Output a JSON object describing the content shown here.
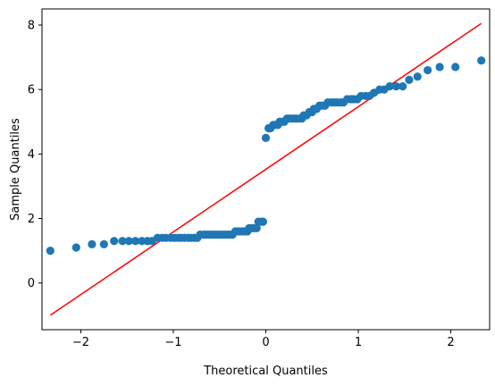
{
  "chart_data": {
    "type": "scatter",
    "title": "",
    "xlabel": "Theoretical Quantiles",
    "ylabel": "Sample Quantiles",
    "xlim": [
      -2.42,
      2.42
    ],
    "ylim": [
      -1.45,
      8.5
    ],
    "xticks": [
      -2,
      -1,
      0,
      1,
      2
    ],
    "yticks": [
      0,
      2,
      4,
      6,
      8
    ],
    "grid": false,
    "point_color": "#1f77b4",
    "line_color": "#ff0000",
    "series": [
      {
        "points": [
          [
            -2.33,
            1.0
          ],
          [
            -2.05,
            1.1
          ],
          [
            -1.88,
            1.2
          ],
          [
            -1.75,
            1.2
          ],
          [
            -1.64,
            1.3
          ],
          [
            -1.55,
            1.3
          ],
          [
            -1.48,
            1.3
          ],
          [
            -1.41,
            1.3
          ],
          [
            -1.34,
            1.3
          ],
          [
            -1.28,
            1.3
          ],
          [
            -1.23,
            1.3
          ],
          [
            -1.17,
            1.4
          ],
          [
            -1.12,
            1.4
          ],
          [
            -1.08,
            1.4
          ],
          [
            -1.03,
            1.4
          ],
          [
            -0.99,
            1.4
          ],
          [
            -0.95,
            1.4
          ],
          [
            -0.92,
            1.4
          ],
          [
            -0.88,
            1.4
          ],
          [
            -0.84,
            1.4
          ],
          [
            -0.81,
            1.4
          ],
          [
            -0.77,
            1.4
          ],
          [
            -0.74,
            1.4
          ],
          [
            -0.71,
            1.5
          ],
          [
            -0.67,
            1.5
          ],
          [
            -0.64,
            1.5
          ],
          [
            -0.61,
            1.5
          ],
          [
            -0.58,
            1.5
          ],
          [
            -0.55,
            1.5
          ],
          [
            -0.52,
            1.5
          ],
          [
            -0.5,
            1.5
          ],
          [
            -0.47,
            1.5
          ],
          [
            -0.44,
            1.5
          ],
          [
            -0.41,
            1.5
          ],
          [
            -0.39,
            1.5
          ],
          [
            -0.36,
            1.5
          ],
          [
            -0.33,
            1.6
          ],
          [
            -0.31,
            1.6
          ],
          [
            -0.28,
            1.6
          ],
          [
            -0.25,
            1.6
          ],
          [
            -0.23,
            1.6
          ],
          [
            -0.2,
            1.6
          ],
          [
            -0.18,
            1.7
          ],
          [
            -0.15,
            1.7
          ],
          [
            -0.13,
            1.7
          ],
          [
            -0.1,
            1.7
          ],
          [
            -0.08,
            1.9
          ],
          [
            -0.05,
            1.9
          ],
          [
            -0.03,
            1.9
          ],
          [
            0.0,
            4.5
          ],
          [
            0.03,
            4.8
          ],
          [
            0.05,
            4.8
          ],
          [
            0.08,
            4.9
          ],
          [
            0.1,
            4.9
          ],
          [
            0.13,
            4.9
          ],
          [
            0.15,
            5.0
          ],
          [
            0.18,
            5.0
          ],
          [
            0.2,
            5.0
          ],
          [
            0.23,
            5.1
          ],
          [
            0.25,
            5.1
          ],
          [
            0.28,
            5.1
          ],
          [
            0.31,
            5.1
          ],
          [
            0.33,
            5.1
          ],
          [
            0.36,
            5.1
          ],
          [
            0.39,
            5.1
          ],
          [
            0.41,
            5.2
          ],
          [
            0.44,
            5.2
          ],
          [
            0.47,
            5.3
          ],
          [
            0.5,
            5.3
          ],
          [
            0.52,
            5.4
          ],
          [
            0.55,
            5.4
          ],
          [
            0.58,
            5.5
          ],
          [
            0.61,
            5.5
          ],
          [
            0.64,
            5.5
          ],
          [
            0.67,
            5.6
          ],
          [
            0.71,
            5.6
          ],
          [
            0.74,
            5.6
          ],
          [
            0.77,
            5.6
          ],
          [
            0.81,
            5.6
          ],
          [
            0.84,
            5.6
          ],
          [
            0.88,
            5.7
          ],
          [
            0.92,
            5.7
          ],
          [
            0.95,
            5.7
          ],
          [
            0.99,
            5.7
          ],
          [
            1.03,
            5.8
          ],
          [
            1.08,
            5.8
          ],
          [
            1.12,
            5.8
          ],
          [
            1.17,
            5.9
          ],
          [
            1.23,
            6.0
          ],
          [
            1.28,
            6.0
          ],
          [
            1.34,
            6.1
          ],
          [
            1.41,
            6.1
          ],
          [
            1.48,
            6.1
          ],
          [
            1.55,
            6.3
          ],
          [
            1.64,
            6.4
          ],
          [
            1.75,
            6.6
          ],
          [
            1.88,
            6.7
          ],
          [
            2.05,
            6.7
          ],
          [
            2.33,
            6.9
          ]
        ]
      }
    ],
    "reference_line": [
      [
        -2.33,
        -1.0
      ],
      [
        2.33,
        8.05
      ]
    ]
  }
}
